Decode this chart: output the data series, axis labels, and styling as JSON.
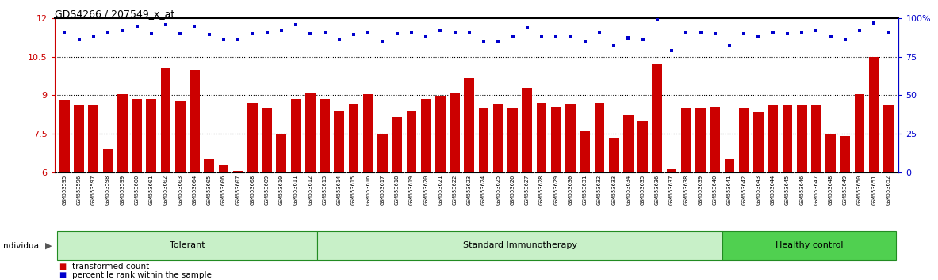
{
  "title": "GDS4266 / 207549_x_at",
  "samples": [
    "GSM553595",
    "GSM553596",
    "GSM553597",
    "GSM553598",
    "GSM553599",
    "GSM553600",
    "GSM553601",
    "GSM553602",
    "GSM553603",
    "GSM553604",
    "GSM553605",
    "GSM553606",
    "GSM553607",
    "GSM553608",
    "GSM553609",
    "GSM553610",
    "GSM553611",
    "GSM553612",
    "GSM553613",
    "GSM553614",
    "GSM553615",
    "GSM553616",
    "GSM553617",
    "GSM553618",
    "GSM553619",
    "GSM553620",
    "GSM553621",
    "GSM553622",
    "GSM553623",
    "GSM553624",
    "GSM553625",
    "GSM553626",
    "GSM553627",
    "GSM553628",
    "GSM553629",
    "GSM553630",
    "GSM553631",
    "GSM553632",
    "GSM553633",
    "GSM553634",
    "GSM553635",
    "GSM553636",
    "GSM553637",
    "GSM553638",
    "GSM553639",
    "GSM553640",
    "GSM553641",
    "GSM553642",
    "GSM553643",
    "GSM553644",
    "GSM553645",
    "GSM553646",
    "GSM553647",
    "GSM553648",
    "GSM553649",
    "GSM553650",
    "GSM553651",
    "GSM553652"
  ],
  "bar_values": [
    8.8,
    8.6,
    8.6,
    6.9,
    9.05,
    8.85,
    8.85,
    10.05,
    8.75,
    10.0,
    6.5,
    6.3,
    6.05,
    8.7,
    8.5,
    7.5,
    8.85,
    9.1,
    8.85,
    8.4,
    8.65,
    9.05,
    7.5,
    8.15,
    8.4,
    8.85,
    8.95,
    9.1,
    9.65,
    8.5,
    8.65,
    8.5,
    9.3,
    8.7,
    8.55,
    8.65,
    7.6,
    8.7,
    7.35,
    8.25,
    8.0,
    10.2,
    6.1,
    8.5,
    8.5,
    8.55,
    6.5,
    8.5,
    8.35,
    8.6,
    8.6,
    8.6,
    8.6,
    7.5,
    7.4,
    9.05,
    10.5,
    8.6
  ],
  "percentile_values": [
    91,
    86,
    88,
    91,
    92,
    95,
    90,
    96,
    90,
    95,
    89,
    86,
    86,
    90,
    91,
    92,
    96,
    90,
    91,
    86,
    89,
    91,
    85,
    90,
    91,
    88,
    92,
    91,
    91,
    85,
    85,
    88,
    94,
    88,
    88,
    88,
    85,
    91,
    82,
    87,
    86,
    99,
    79,
    91,
    91,
    90,
    82,
    90,
    88,
    91,
    90,
    91,
    92,
    88,
    86,
    92,
    97,
    91
  ],
  "group_boundaries": [
    0,
    18,
    46,
    58
  ],
  "group_labels": [
    "Tolerant",
    "Standard Immunotherapy",
    "Healthy control"
  ],
  "group_colors": [
    "#c8f0c8",
    "#c8f0c8",
    "#50d050"
  ],
  "group_border_color": "#228B22",
  "ylim_left": [
    6,
    12
  ],
  "ylim_right": [
    0,
    100
  ],
  "yticks_left": [
    6,
    7.5,
    9,
    10.5,
    12
  ],
  "yticks_right": [
    0,
    25,
    50,
    75,
    100
  ],
  "bar_color": "#cc0000",
  "dot_color": "#0000cc",
  "label_red": "transformed count",
  "label_blue": "percentile rank within the sample",
  "dot_size": 9,
  "xticklabel_bg": "#d8d8d8"
}
